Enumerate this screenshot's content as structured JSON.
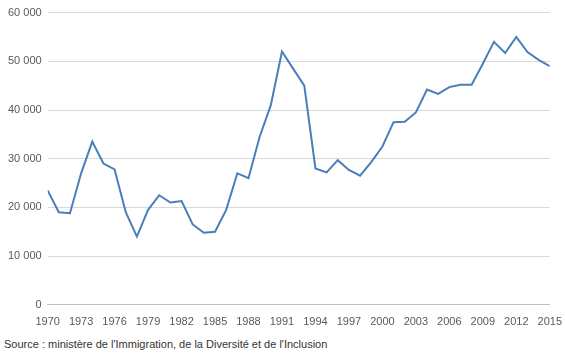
{
  "chart_data": {
    "type": "line",
    "source": "Source : ministère de l'Immigration, de la Diversité et de l'Inclusion",
    "x": [
      1970,
      1971,
      1972,
      1973,
      1974,
      1975,
      1976,
      1977,
      1978,
      1979,
      1980,
      1981,
      1982,
      1983,
      1984,
      1985,
      1986,
      1987,
      1988,
      1989,
      1990,
      1991,
      1992,
      1993,
      1994,
      1995,
      1996,
      1997,
      1998,
      1999,
      2000,
      2001,
      2002,
      2003,
      2004,
      2005,
      2006,
      2007,
      2008,
      2009,
      2010,
      2011,
      2012,
      2013,
      2014,
      2015
    ],
    "values": [
      23500,
      19000,
      18800,
      27000,
      33500,
      29000,
      27800,
      19000,
      14000,
      19500,
      22500,
      21000,
      21300,
      16500,
      14800,
      15000,
      19500,
      27000,
      26000,
      34500,
      41000,
      52000,
      48500,
      45000,
      28000,
      27200,
      29700,
      27700,
      26500,
      29300,
      32500,
      37500,
      37600,
      39500,
      44200,
      43300,
      44700,
      45200,
      45200,
      49500,
      54000,
      51700,
      55000,
      51900,
      50300,
      49000
    ],
    "color": "#4a7ebb",
    "xlim": [
      1970,
      2015
    ],
    "xticks": [
      1970,
      1973,
      1976,
      1979,
      1982,
      1985,
      1988,
      1991,
      1994,
      1997,
      2000,
      2003,
      2006,
      2009,
      2012,
      2015
    ],
    "ylim": [
      0,
      60000
    ],
    "yticks": [
      0,
      {
        "value": 10000,
        "label": "10 000"
      },
      {
        "value": 20000,
        "label": "20 000"
      },
      {
        "value": 30000,
        "label": "30 000"
      },
      {
        "value": 40000,
        "label": "40 000"
      },
      {
        "value": 50000,
        "label": "50 000"
      },
      {
        "value": 60000,
        "label": "60 000"
      }
    ],
    "grid": true
  }
}
